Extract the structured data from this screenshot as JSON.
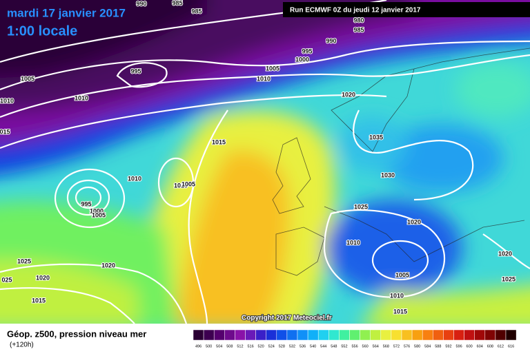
{
  "header": {
    "valid_date": "mardi 17 janvier 2017",
    "local_time": "1:00 locale",
    "run": "Run ECMWF 0Z du jeudi 12 janvier 2017"
  },
  "isobar_labels": [
    "990",
    "985",
    "985",
    "980",
    "985",
    "990",
    "995",
    "1000",
    "1005",
    "1010",
    "995",
    "1005",
    "1010",
    "1010",
    "015",
    "1020",
    "1015",
    "1035",
    "1030",
    "1010",
    "1010",
    "1005",
    "995",
    "1000",
    "1005",
    "1025",
    "1020",
    "1010",
    "1025",
    "1020",
    "025",
    "1020",
    "1015",
    "1005",
    "1010",
    "1015",
    "1020",
    "1025"
  ],
  "copyright": "Copyright 2017 Meteociel.fr",
  "footer": {
    "title": "Géop. z500, pression niveau mer",
    "lead_time": "(+120h)"
  },
  "legend": {
    "scale_labels": [
      496,
      500,
      504,
      508,
      512,
      516,
      520,
      524,
      528,
      532,
      536,
      540,
      544,
      548,
      552,
      556,
      560,
      564,
      568,
      572,
      576,
      580,
      584,
      588,
      592,
      596,
      600,
      604,
      608,
      612,
      616
    ],
    "colors": [
      "#2a0033",
      "#3d0050",
      "#55006e",
      "#6e0a8c",
      "#8a12a8",
      "#6a1ab8",
      "#3a20c8",
      "#1a30d8",
      "#1050e8",
      "#1070f0",
      "#1090f8",
      "#10b0f8",
      "#20d0f0",
      "#30e8d0",
      "#40f0a0",
      "#60f070",
      "#90f050",
      "#c0f040",
      "#e8f040",
      "#f8e030",
      "#f8c020",
      "#f8a010",
      "#f88010",
      "#f06010",
      "#e84010",
      "#d82010",
      "#c01010",
      "#a00808",
      "#800404",
      "#500000",
      "#200000"
    ]
  }
}
